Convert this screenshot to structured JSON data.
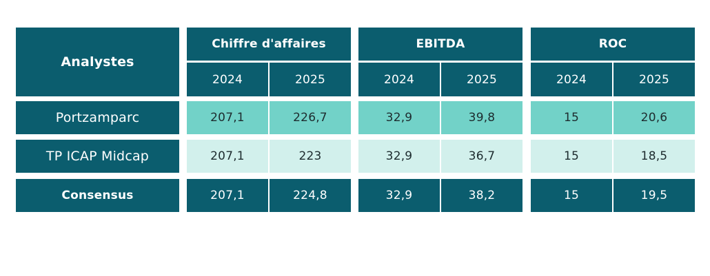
{
  "chart_data": {
    "type": "table",
    "corner_label": "Analystes",
    "groups": [
      {
        "label": "Chiffre d'affaires",
        "years": [
          "2024",
          "2025"
        ]
      },
      {
        "label": "EBITDA",
        "years": [
          "2024",
          "2025"
        ]
      },
      {
        "label": "ROC",
        "years": [
          "2024",
          "2025"
        ]
      }
    ],
    "rows": [
      {
        "name": "Portzamparc",
        "values": [
          "207,1",
          "226,7",
          "32,9",
          "39,8",
          "15",
          "20,6"
        ]
      },
      {
        "name": "TP ICAP Midcap",
        "values": [
          "207,1",
          "223",
          "32,9",
          "36,7",
          "15",
          "18,5"
        ]
      },
      {
        "name": "Consensus",
        "values": [
          "207,1",
          "224,8",
          "32,9",
          "38,2",
          "15",
          "19,5"
        ]
      }
    ],
    "colors": {
      "header": "#0b5d6e",
      "row1": "#72d2c8",
      "row2": "#d2f0ec",
      "consensus": "#0b5d6e"
    }
  }
}
